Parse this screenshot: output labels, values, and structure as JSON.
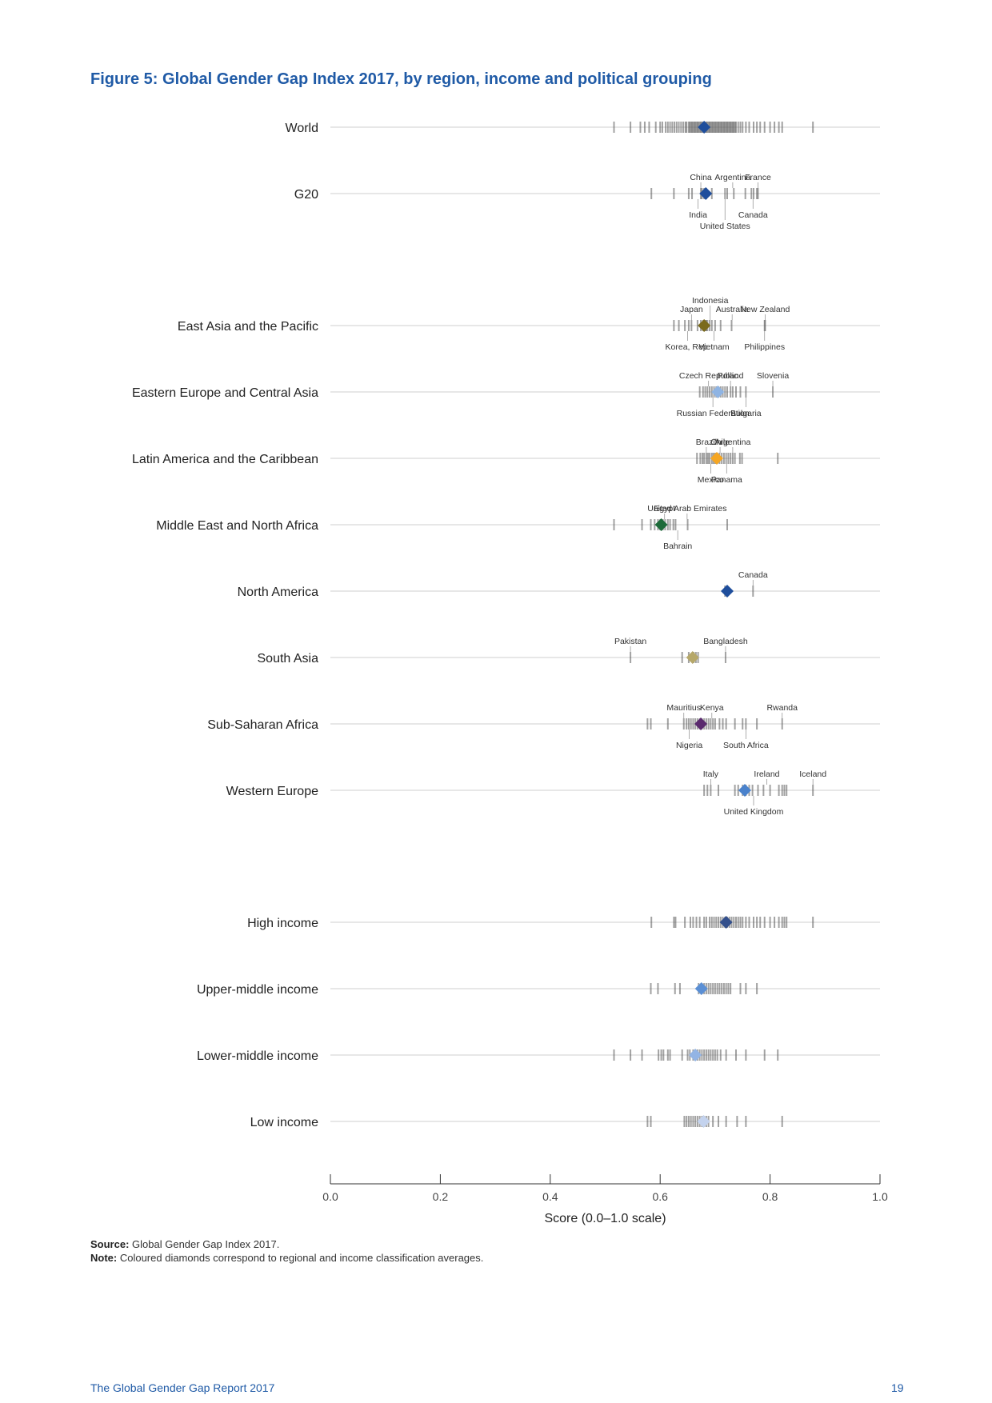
{
  "figure_title": "Figure 5: Global Gender Gap Index 2017, by region, income and political grouping",
  "source_label": "Source:",
  "source_text": "Global Gender Gap Index 2017.",
  "note_label": "Note:",
  "note_text": "Coloured diamonds correspond to regional and income classification averages.",
  "footer_left": "The Global Gender Gap Report 2017",
  "footer_right": "19",
  "chart_data": {
    "type": "scatter",
    "xlabel": "Score (0.0–1.0 scale)",
    "xlim": [
      0,
      1
    ],
    "xticks": [
      "0.0",
      "0.2",
      "0.4",
      "0.6",
      "0.8",
      "1.0"
    ],
    "rows": [
      {
        "label": "World",
        "avg": 0.68,
        "color": "#1f4e9c",
        "scores": [
          0.516,
          0.546,
          0.564,
          0.572,
          0.58,
          0.592,
          0.6,
          0.604,
          0.61,
          0.614,
          0.618,
          0.622,
          0.626,
          0.63,
          0.634,
          0.638,
          0.642,
          0.646,
          0.648,
          0.652,
          0.654,
          0.656,
          0.658,
          0.66,
          0.662,
          0.664,
          0.666,
          0.668,
          0.67,
          0.672,
          0.674,
          0.676,
          0.678,
          0.68,
          0.682,
          0.684,
          0.686,
          0.688,
          0.69,
          0.692,
          0.694,
          0.696,
          0.698,
          0.7,
          0.702,
          0.704,
          0.706,
          0.708,
          0.71,
          0.712,
          0.714,
          0.716,
          0.718,
          0.72,
          0.722,
          0.724,
          0.726,
          0.728,
          0.73,
          0.732,
          0.734,
          0.736,
          0.738,
          0.742,
          0.746,
          0.75,
          0.756,
          0.762,
          0.77,
          0.776,
          0.782,
          0.79,
          0.8,
          0.808,
          0.816,
          0.822,
          0.878
        ],
        "labels": []
      },
      {
        "label": "G20",
        "avg": 0.683,
        "color": "#1f4e9c",
        "scores": [
          0.584,
          0.625,
          0.652,
          0.658,
          0.674,
          0.676,
          0.68,
          0.684,
          0.694,
          0.718,
          0.722,
          0.734,
          0.755,
          0.766,
          0.77,
          0.776,
          0.778
        ],
        "labels": [
          {
            "text": "China",
            "x": 0.674,
            "pos": "top",
            "level": 0
          },
          {
            "text": "Argentina",
            "x": 0.732,
            "pos": "top",
            "level": 0
          },
          {
            "text": "France",
            "x": 0.778,
            "pos": "top",
            "level": 0
          },
          {
            "text": "India",
            "x": 0.669,
            "pos": "bottom",
            "level": 0
          },
          {
            "text": "Canada",
            "x": 0.769,
            "pos": "bottom",
            "level": 0
          },
          {
            "text": "United States",
            "x": 0.718,
            "pos": "bottom",
            "level": 1
          }
        ]
      },
      {
        "label": "East Asia and the Pacific",
        "avg": 0.68,
        "color": "#7a6a1c",
        "scores": [
          0.625,
          0.634,
          0.645,
          0.652,
          0.657,
          0.668,
          0.674,
          0.678,
          0.682,
          0.684,
          0.686,
          0.69,
          0.694,
          0.7,
          0.71,
          0.73,
          0.79,
          0.791
        ],
        "labels": [
          {
            "text": "Indonesia",
            "x": 0.691,
            "pos": "top",
            "level": 1
          },
          {
            "text": "Japan",
            "x": 0.657,
            "pos": "top",
            "level": 0
          },
          {
            "text": "Australia",
            "x": 0.731,
            "pos": "top",
            "level": 0
          },
          {
            "text": "New Zealand",
            "x": 0.791,
            "pos": "top",
            "level": 0
          },
          {
            "text": "Korea, Rep.",
            "x": 0.65,
            "pos": "bottom",
            "level": 0
          },
          {
            "text": "Vietnam",
            "x": 0.698,
            "pos": "bottom",
            "level": 0
          },
          {
            "text": "Philippines",
            "x": 0.79,
            "pos": "bottom",
            "level": 0
          }
        ]
      },
      {
        "label": "Eastern Europe and Central Asia",
        "avg": 0.705,
        "color": "#8fb4e3",
        "scores": [
          0.672,
          0.678,
          0.682,
          0.686,
          0.69,
          0.694,
          0.698,
          0.702,
          0.706,
          0.71,
          0.714,
          0.718,
          0.722,
          0.728,
          0.732,
          0.738,
          0.746,
          0.756,
          0.805
        ],
        "labels": [
          {
            "text": "Czech Republic",
            "x": 0.688,
            "pos": "top",
            "level": 0
          },
          {
            "text": "Poland",
            "x": 0.728,
            "pos": "top",
            "level": 0
          },
          {
            "text": "Slovenia",
            "x": 0.805,
            "pos": "top",
            "level": 0
          },
          {
            "text": "Russian Federation",
            "x": 0.696,
            "pos": "bottom",
            "level": 0
          },
          {
            "text": "Bulgaria",
            "x": 0.756,
            "pos": "bottom",
            "level": 0
          }
        ]
      },
      {
        "label": "Latin America and the Caribbean",
        "avg": 0.703,
        "color": "#f5a623",
        "scores": [
          0.667,
          0.673,
          0.677,
          0.68,
          0.684,
          0.687,
          0.69,
          0.694,
          0.697,
          0.7,
          0.704,
          0.708,
          0.712,
          0.716,
          0.72,
          0.724,
          0.728,
          0.732,
          0.736,
          0.745,
          0.749,
          0.814
        ],
        "labels": [
          {
            "text": "Brazil",
            "x": 0.684,
            "pos": "top",
            "level": 0
          },
          {
            "text": "Chile",
            "x": 0.709,
            "pos": "top",
            "level": 0
          },
          {
            "text": "Argentina",
            "x": 0.732,
            "pos": "top",
            "level": 0
          },
          {
            "text": "Mexico",
            "x": 0.692,
            "pos": "bottom",
            "level": 0
          },
          {
            "text": "Panama",
            "x": 0.721,
            "pos": "bottom",
            "level": 0
          }
        ]
      },
      {
        "label": "Middle East and North Africa",
        "avg": 0.602,
        "color": "#1e6b3a",
        "scores": [
          0.516,
          0.567,
          0.583,
          0.59,
          0.596,
          0.6,
          0.605,
          0.609,
          0.614,
          0.618,
          0.624,
          0.628,
          0.65,
          0.722
        ],
        "labels": [
          {
            "text": "Egypt",
            "x": 0.608,
            "pos": "top",
            "level": 0
          },
          {
            "text": "United Arab Emirates",
            "x": 0.649,
            "pos": "top",
            "level": 0
          },
          {
            "text": "Bahrain",
            "x": 0.632,
            "pos": "bottom",
            "level": 0
          }
        ]
      },
      {
        "label": "North America",
        "avg": 0.722,
        "color": "#1f4e9c",
        "scores": [
          0.718,
          0.769
        ],
        "labels": [
          {
            "text": "Canada",
            "x": 0.769,
            "pos": "top",
            "level": 0
          }
        ]
      },
      {
        "label": "South Asia",
        "avg": 0.659,
        "color": "#b6a86a",
        "scores": [
          0.546,
          0.64,
          0.652,
          0.661,
          0.665,
          0.669,
          0.719
        ],
        "labels": [
          {
            "text": "Pakistan",
            "x": 0.546,
            "pos": "top",
            "level": 0
          },
          {
            "text": "Bangladesh",
            "x": 0.719,
            "pos": "top",
            "level": 0
          }
        ]
      },
      {
        "label": "Sub-Saharan Africa",
        "avg": 0.674,
        "color": "#5a2a6e",
        "scores": [
          0.577,
          0.583,
          0.614,
          0.643,
          0.648,
          0.652,
          0.656,
          0.66,
          0.664,
          0.668,
          0.672,
          0.676,
          0.68,
          0.684,
          0.688,
          0.692,
          0.696,
          0.7,
          0.708,
          0.714,
          0.72,
          0.736,
          0.75,
          0.756,
          0.776,
          0.822
        ],
        "labels": [
          {
            "text": "Mauritius",
            "x": 0.643,
            "pos": "top",
            "level": 0
          },
          {
            "text": "Kenya",
            "x": 0.694,
            "pos": "top",
            "level": 0
          },
          {
            "text": "Rwanda",
            "x": 0.822,
            "pos": "top",
            "level": 0
          },
          {
            "text": "Nigeria",
            "x": 0.653,
            "pos": "bottom",
            "level": 0
          },
          {
            "text": "South Africa",
            "x": 0.756,
            "pos": "bottom",
            "level": 0
          }
        ]
      },
      {
        "label": "Western Europe",
        "avg": 0.754,
        "color": "#4a82cc",
        "scores": [
          0.68,
          0.686,
          0.692,
          0.706,
          0.736,
          0.742,
          0.75,
          0.756,
          0.762,
          0.768,
          0.778,
          0.788,
          0.8,
          0.816,
          0.822,
          0.826,
          0.83,
          0.878
        ],
        "labels": [
          {
            "text": "Italy",
            "x": 0.692,
            "pos": "top",
            "level": 0
          },
          {
            "text": "Ireland",
            "x": 0.794,
            "pos": "top",
            "level": 0
          },
          {
            "text": "Iceland",
            "x": 0.878,
            "pos": "top",
            "level": 0
          },
          {
            "text": "United Kingdom",
            "x": 0.77,
            "pos": "bottom",
            "level": 0
          }
        ]
      },
      {
        "label": "High income",
        "avg": 0.72,
        "color": "#34508c",
        "scores": [
          0.584,
          0.625,
          0.628,
          0.645,
          0.655,
          0.66,
          0.666,
          0.672,
          0.68,
          0.684,
          0.69,
          0.694,
          0.698,
          0.702,
          0.706,
          0.71,
          0.714,
          0.718,
          0.722,
          0.726,
          0.73,
          0.734,
          0.738,
          0.742,
          0.746,
          0.75,
          0.756,
          0.762,
          0.77,
          0.776,
          0.782,
          0.79,
          0.8,
          0.808,
          0.816,
          0.822,
          0.826,
          0.83,
          0.878
        ],
        "labels": []
      },
      {
        "label": "Upper-middle income",
        "avg": 0.675,
        "color": "#5b8fd4",
        "scores": [
          0.583,
          0.596,
          0.627,
          0.636,
          0.67,
          0.676,
          0.68,
          0.684,
          0.688,
          0.692,
          0.696,
          0.7,
          0.704,
          0.708,
          0.712,
          0.716,
          0.72,
          0.724,
          0.728,
          0.746,
          0.756,
          0.776
        ],
        "labels": []
      },
      {
        "label": "Lower-middle income",
        "avg": 0.664,
        "color": "#93b4e4",
        "scores": [
          0.516,
          0.546,
          0.567,
          0.597,
          0.602,
          0.606,
          0.614,
          0.618,
          0.64,
          0.65,
          0.654,
          0.66,
          0.668,
          0.672,
          0.676,
          0.68,
          0.684,
          0.688,
          0.692,
          0.696,
          0.7,
          0.704,
          0.71,
          0.72,
          0.738,
          0.756,
          0.79,
          0.814
        ],
        "labels": []
      },
      {
        "label": "Low income",
        "avg": 0.679,
        "color": "#c4d3ee",
        "scores": [
          0.577,
          0.583,
          0.644,
          0.648,
          0.652,
          0.656,
          0.66,
          0.664,
          0.668,
          0.672,
          0.676,
          0.68,
          0.684,
          0.688,
          0.696,
          0.706,
          0.72,
          0.74,
          0.756,
          0.822
        ],
        "labels": []
      }
    ]
  }
}
